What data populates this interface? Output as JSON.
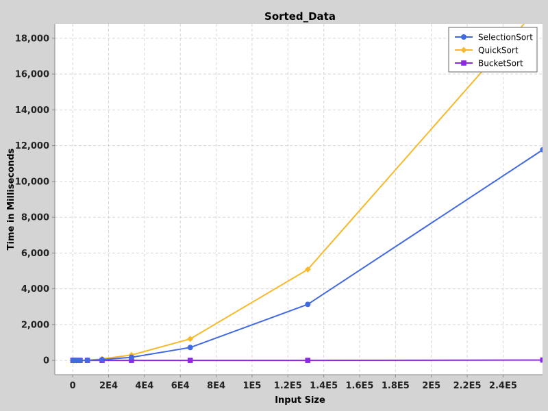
{
  "chart_data": {
    "type": "line",
    "title": "Sorted_Data",
    "xlabel": "Input Size",
    "ylabel": "Time in Milliseconds",
    "xlim": [
      -10000,
      262000
    ],
    "ylim": [
      -800,
      18800
    ],
    "x_ticks": [
      0,
      20000,
      40000,
      60000,
      80000,
      100000,
      120000,
      140000,
      160000,
      180000,
      200000,
      220000,
      240000
    ],
    "x_tick_labels": [
      "0",
      "2E4",
      "4E4",
      "6E4",
      "8E4",
      "1E5",
      "1.2E5",
      "1.4E5",
      "1.6E5",
      "1.8E5",
      "2E5",
      "2.2E5",
      "2.4E5"
    ],
    "y_ticks": [
      0,
      2000,
      4000,
      6000,
      8000,
      10000,
      12000,
      14000,
      16000,
      18000
    ],
    "y_tick_labels": [
      "0",
      "2,000",
      "4,000",
      "6,000",
      "8,000",
      "10,000",
      "12,000",
      "14,000",
      "16,000",
      "18,000"
    ],
    "grid": true,
    "legend_position": "top-right",
    "series": [
      {
        "name": "SelectionSort",
        "color": "#4169e1",
        "marker": "circle",
        "x": [
          128,
          256,
          512,
          1024,
          2048,
          4096,
          8192,
          16384,
          32768,
          65536,
          131072,
          262144
        ],
        "y": [
          0,
          0,
          0,
          0,
          0,
          0,
          3,
          40,
          170,
          720,
          3130,
          11770
        ]
      },
      {
        "name": "QuickSort",
        "color": "#f7b928",
        "marker": "diamond",
        "x": [
          128,
          256,
          512,
          1024,
          2048,
          4096,
          8192,
          16384,
          32768,
          65536,
          131072,
          262144
        ],
        "y": [
          0,
          0,
          0,
          0,
          0,
          0,
          5,
          80,
          300,
          1200,
          5080,
          20000
        ]
      },
      {
        "name": "BucketSort",
        "color": "#8a2be2",
        "marker": "square",
        "x": [
          128,
          256,
          512,
          1024,
          2048,
          4096,
          8192,
          16384,
          32768,
          65536,
          131072,
          262144
        ],
        "y": [
          0,
          0,
          0,
          0,
          0,
          0,
          0,
          0,
          0,
          0,
          0,
          20
        ]
      }
    ]
  }
}
